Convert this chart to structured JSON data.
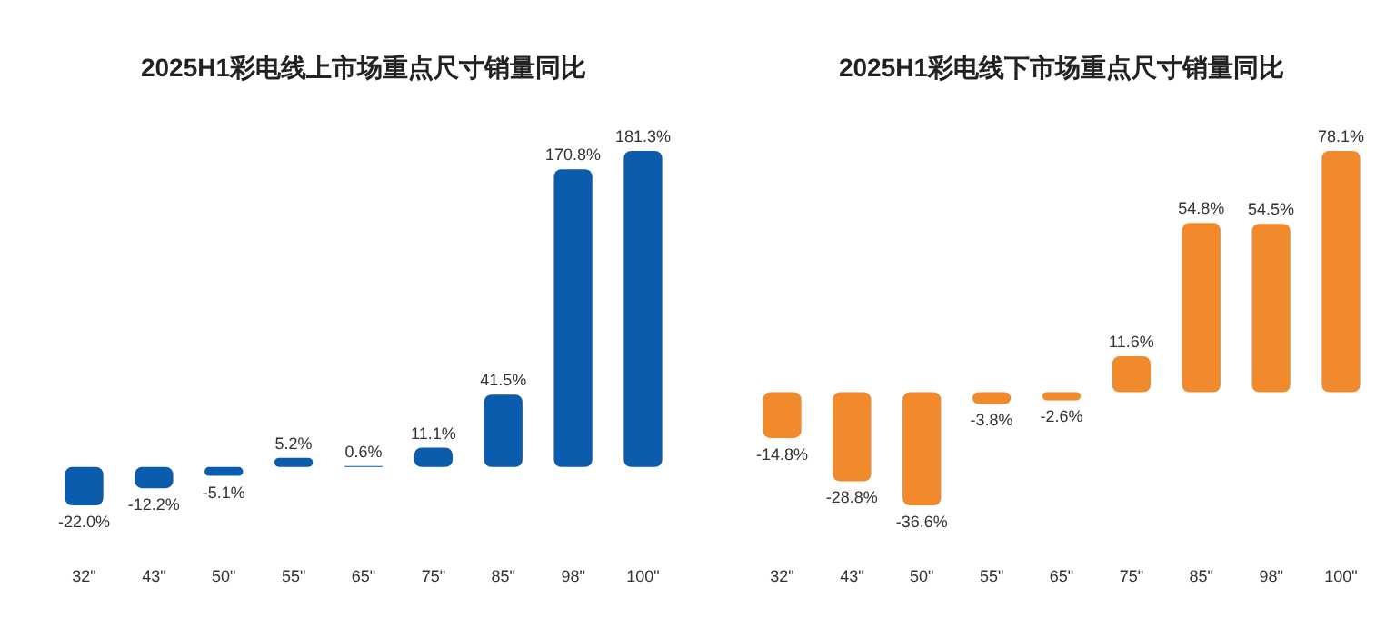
{
  "chart_data": [
    {
      "type": "bar",
      "title": "2025H1彩电线上市场重点尺寸销量同比",
      "categories": [
        "32\"",
        "43\"",
        "50\"",
        "55\"",
        "65\"",
        "75\"",
        "85\"",
        "98\"",
        "100\""
      ],
      "values": [
        -22.0,
        -12.2,
        -5.1,
        5.2,
        0.6,
        11.1,
        41.5,
        170.8,
        181.3
      ],
      "color": "#0b5cad",
      "data_labels": true,
      "value_labels": [
        "-22.0%",
        "-12.2%",
        "-5.1%",
        "5.2%",
        "0.6%",
        "11.1%",
        "41.5%",
        "170.8%",
        "181.3%"
      ]
    },
    {
      "type": "bar",
      "title": "2025H1彩电线下市场重点尺寸销量同比",
      "categories": [
        "32\"",
        "43\"",
        "50\"",
        "55\"",
        "65\"",
        "75\"",
        "85\"",
        "98\"",
        "100\""
      ],
      "values": [
        -14.8,
        -28.8,
        -36.6,
        -3.8,
        -2.6,
        11.6,
        54.8,
        54.5,
        78.1
      ],
      "color": "#f08a2c",
      "data_labels": true,
      "value_labels": [
        "-14.8%",
        "-28.8%",
        "-36.6%",
        "-3.8%",
        "-2.6%",
        "11.6%",
        "54.8%",
        "54.5%",
        "78.1%"
      ]
    }
  ]
}
